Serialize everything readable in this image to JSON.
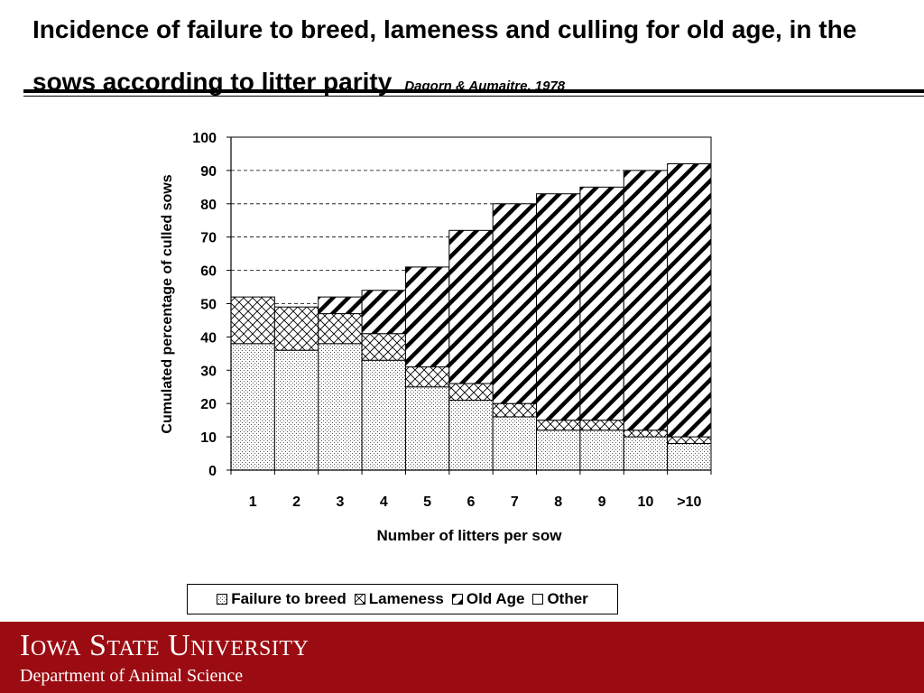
{
  "header": {
    "title": "Incidence of failure to breed, lameness and culling for old age, in the sows according to litter parity",
    "citation": "Dagorn & Aumaitre, 1978"
  },
  "footer": {
    "university": "Iowa State University",
    "department": "Department of Animal Science"
  },
  "chart_data": {
    "type": "bar",
    "stacked": true,
    "categories": [
      "1",
      "2",
      "3",
      "4",
      "5",
      "6",
      "7",
      "8",
      "9",
      "10",
      ">10"
    ],
    "series": [
      {
        "name": "Failure to breed",
        "pattern": "dots",
        "values": [
          38,
          36,
          38,
          33,
          25,
          21,
          16,
          12,
          12,
          10,
          8
        ]
      },
      {
        "name": "Lameness",
        "pattern": "crosshatch",
        "values": [
          14,
          13,
          9,
          8,
          6,
          5,
          4,
          3,
          3,
          2,
          2
        ]
      },
      {
        "name": "Old Age",
        "pattern": "diagonal",
        "values": [
          0,
          0,
          5,
          13,
          30,
          46,
          60,
          68,
          70,
          78,
          82
        ]
      },
      {
        "name": "Other",
        "pattern": "none",
        "values": [
          0,
          0,
          0,
          0,
          0,
          0,
          0,
          0,
          0,
          0,
          0
        ]
      }
    ],
    "xlabel": "Number of litters per sow",
    "ylabel": "Cumulated percentage of culled sows",
    "ylim": [
      0,
      100
    ],
    "yticks": [
      0,
      10,
      20,
      30,
      40,
      50,
      60,
      70,
      80,
      90,
      100
    ],
    "grid": "dashed horizontal",
    "legend_position": "bottom"
  }
}
